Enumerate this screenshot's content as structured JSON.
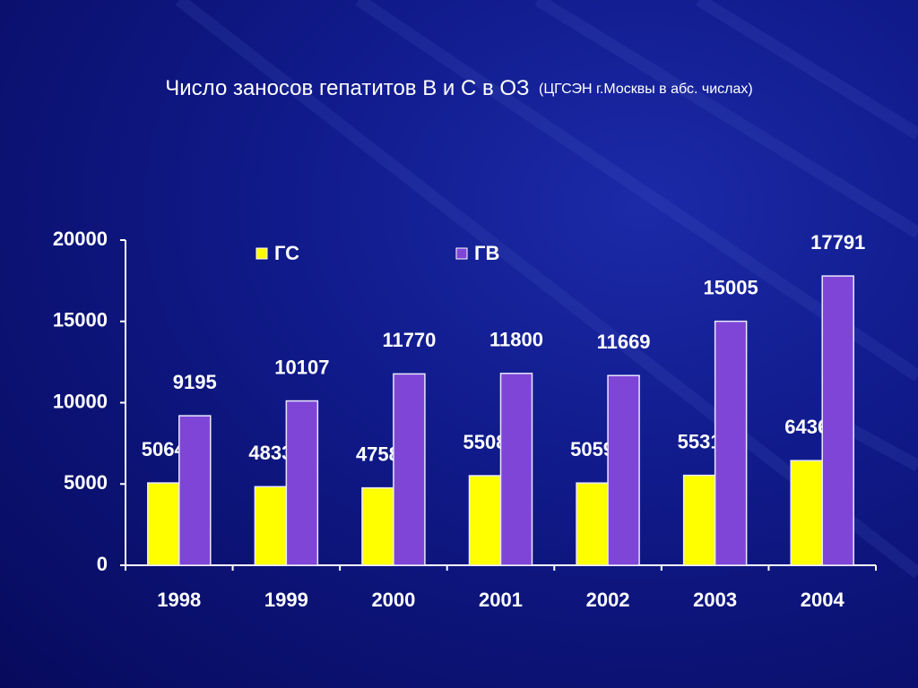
{
  "chart_data": {
    "type": "bar",
    "title": "Число заносов гепатитов В и С в ОЗ",
    "subtitle": "(ЦГСЭН г.Москвы в абс. числах)",
    "categories": [
      "1998",
      "1999",
      "2000",
      "2001",
      "2002",
      "2003",
      "2004"
    ],
    "series": [
      {
        "name": "ГС",
        "color": "#ffff00",
        "values": [
          5064,
          4833,
          4758,
          5508,
          5059,
          5531,
          6436
        ]
      },
      {
        "name": "ГВ",
        "color": "#7f45d6",
        "values": [
          9195,
          10107,
          11770,
          11800,
          11669,
          15005,
          17791
        ]
      }
    ],
    "ylim": [
      0,
      20000
    ],
    "yticks": [
      0,
      5000,
      10000,
      15000,
      20000
    ],
    "grid": false,
    "legend": "top"
  }
}
